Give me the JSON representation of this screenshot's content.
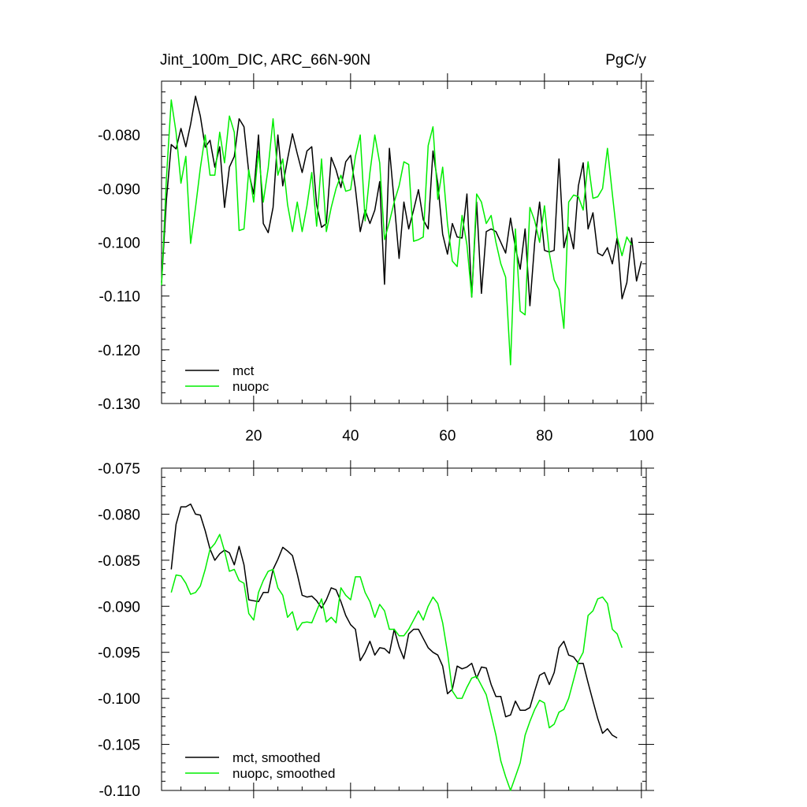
{
  "chart_data": [
    {
      "type": "line",
      "title": "Jint_100m_DIC, ARC_66N-90N",
      "units_label": "PgC/y",
      "xlim": [
        1,
        101
      ],
      "ylim": [
        -0.13,
        -0.07
      ],
      "x_ticks": [
        20,
        40,
        60,
        80,
        100
      ],
      "y_ticks": [
        -0.08,
        -0.09,
        -0.1,
        -0.11,
        -0.12,
        -0.13
      ],
      "y_tick_labels": [
        "-0.080",
        "-0.090",
        "-0.100",
        "-0.110",
        "-0.120",
        "-0.130"
      ],
      "legend_position": "bottom-left",
      "grid": false,
      "series": [
        {
          "name": "mct",
          "color": "#000000",
          "x_start": 1,
          "values": [
            -0.1075,
            -0.092,
            -0.0818,
            -0.0826,
            -0.0788,
            -0.0822,
            -0.078,
            -0.0728,
            -0.0765,
            -0.0823,
            -0.081,
            -0.086,
            -0.0822,
            -0.0935,
            -0.086,
            -0.084,
            -0.077,
            -0.0785,
            -0.087,
            -0.091,
            -0.08,
            -0.0965,
            -0.0982,
            -0.0935,
            -0.08,
            -0.0895,
            -0.0845,
            -0.0798,
            -0.0835,
            -0.087,
            -0.083,
            -0.0822,
            -0.093,
            -0.0972,
            -0.0965,
            -0.0842,
            -0.0865,
            -0.0898,
            -0.085,
            -0.0838,
            -0.09,
            -0.098,
            -0.094,
            -0.0965,
            -0.094,
            -0.0887,
            -0.1078,
            -0.0825,
            -0.0925,
            -0.103,
            -0.0925,
            -0.0975,
            -0.094,
            -0.0902,
            -0.0958,
            -0.0975,
            -0.083,
            -0.089,
            -0.0985,
            -0.1022,
            -0.0965,
            -0.099,
            -0.0992,
            -0.091,
            -0.1102,
            -0.0925,
            -0.1095,
            -0.098,
            -0.0975,
            -0.098,
            -0.1,
            -0.102,
            -0.0955,
            -0.101,
            -0.105,
            -0.0975,
            -0.1118,
            -0.1,
            -0.0925,
            -0.1015,
            -0.1018,
            -0.1015,
            -0.0845,
            -0.101,
            -0.0972,
            -0.1012,
            -0.0895,
            -0.0852,
            -0.0975,
            -0.0945,
            -0.102,
            -0.1025,
            -0.101,
            -0.104,
            -0.0992,
            -0.1105,
            -0.1075,
            -0.0992,
            -0.1072,
            -0.1035
          ]
        },
        {
          "name": "nuopc",
          "color": "#00ee00",
          "x_start": 1,
          "values": [
            -0.108,
            -0.088,
            -0.0735,
            -0.0795,
            -0.089,
            -0.084,
            -0.1002,
            -0.0935,
            -0.0862,
            -0.08,
            -0.0875,
            -0.0875,
            -0.0795,
            -0.0852,
            -0.0765,
            -0.0795,
            -0.0978,
            -0.0975,
            -0.0865,
            -0.0925,
            -0.083,
            -0.0925,
            -0.0862,
            -0.077,
            -0.0875,
            -0.0845,
            -0.093,
            -0.098,
            -0.0925,
            -0.098,
            -0.0932,
            -0.087,
            -0.097,
            -0.0845,
            -0.098,
            -0.0935,
            -0.09,
            -0.0875,
            -0.0905,
            -0.0902,
            -0.084,
            -0.08,
            -0.096,
            -0.087,
            -0.08,
            -0.0852,
            -0.0995,
            -0.0962,
            -0.0925,
            -0.0895,
            -0.085,
            -0.0855,
            -0.0998,
            -0.0995,
            -0.099,
            -0.082,
            -0.0785,
            -0.092,
            -0.086,
            -0.0965,
            -0.1035,
            -0.1045,
            -0.095,
            -0.1005,
            -0.1102,
            -0.091,
            -0.0925,
            -0.0965,
            -0.095,
            -0.1,
            -0.104,
            -0.1065,
            -0.1228,
            -0.0975,
            -0.1128,
            -0.1135,
            -0.0935,
            -0.096,
            -0.1,
            -0.0932,
            -0.102,
            -0.107,
            -0.1088,
            -0.116,
            -0.0925,
            -0.0912,
            -0.0915,
            -0.094,
            -0.085,
            -0.0918,
            -0.0915,
            -0.09,
            -0.0825,
            -0.091,
            -0.099,
            -0.1025,
            -0.099,
            -0.1005
          ]
        }
      ]
    },
    {
      "type": "line",
      "title": "",
      "xlim": [
        1,
        101
      ],
      "ylim": [
        -0.11,
        -0.075
      ],
      "y_ticks": [
        -0.075,
        -0.08,
        -0.085,
        -0.09,
        -0.095,
        -0.1,
        -0.105,
        -0.11
      ],
      "y_tick_labels": [
        "-0.075",
        "-0.080",
        "-0.085",
        "-0.090",
        "-0.095",
        "-0.100",
        "-0.105",
        "-0.110"
      ],
      "legend_position": "bottom-left",
      "grid": false,
      "series": [
        {
          "name": "mct, smoothed",
          "color": "#000000",
          "x_start": 3,
          "values": [
            -0.086,
            -0.0811,
            -0.0792,
            -0.0792,
            -0.0789,
            -0.08,
            -0.0801,
            -0.0818,
            -0.0838,
            -0.085,
            -0.0843,
            -0.0839,
            -0.0842,
            -0.0855,
            -0.0835,
            -0.0855,
            -0.0893,
            -0.0894,
            -0.0895,
            -0.0885,
            -0.0885,
            -0.086,
            -0.0849,
            -0.0836,
            -0.084,
            -0.0845,
            -0.0865,
            -0.0888,
            -0.089,
            -0.0889,
            -0.0894,
            -0.0902,
            -0.0893,
            -0.088,
            -0.0882,
            -0.0895,
            -0.091,
            -0.092,
            -0.0925,
            -0.0959,
            -0.095,
            -0.0938,
            -0.0953,
            -0.0945,
            -0.0946,
            -0.0951,
            -0.0925,
            -0.0944,
            -0.0957,
            -0.093,
            -0.0925,
            -0.0925,
            -0.0935,
            -0.0945,
            -0.095,
            -0.0953,
            -0.0965,
            -0.0995,
            -0.099,
            -0.0965,
            -0.0968,
            -0.0966,
            -0.0962,
            -0.0978,
            -0.0966,
            -0.0967,
            -0.0985,
            -0.0998,
            -0.0998,
            -0.102,
            -0.1018,
            -0.1003,
            -0.1013,
            -0.1013,
            -0.101,
            -0.0992,
            -0.0975,
            -0.0972,
            -0.0985,
            -0.0972,
            -0.0945,
            -0.0938,
            -0.0953,
            -0.0955,
            -0.0962,
            -0.0962,
            -0.0983,
            -0.1003,
            -0.1022,
            -0.1038,
            -0.1033,
            -0.104,
            -0.1043
          ]
        },
        {
          "name": "nuopc, smoothed",
          "color": "#00ee00",
          "x_start": 3,
          "values": [
            -0.0885,
            -0.0866,
            -0.0867,
            -0.0875,
            -0.0887,
            -0.0885,
            -0.0878,
            -0.086,
            -0.0838,
            -0.0832,
            -0.0822,
            -0.084,
            -0.0862,
            -0.086,
            -0.0872,
            -0.0875,
            -0.0908,
            -0.0915,
            -0.0885,
            -0.0872,
            -0.0862,
            -0.086,
            -0.088,
            -0.0888,
            -0.0912,
            -0.0906,
            -0.0926,
            -0.0918,
            -0.0917,
            -0.0918,
            -0.0905,
            -0.0892,
            -0.0917,
            -0.0912,
            -0.0918,
            -0.088,
            -0.0888,
            -0.0893,
            -0.0868,
            -0.0868,
            -0.0885,
            -0.0895,
            -0.0912,
            -0.0898,
            -0.0905,
            -0.0925,
            -0.0925,
            -0.0932,
            -0.0932,
            -0.0925,
            -0.0915,
            -0.0905,
            -0.0915,
            -0.09,
            -0.089,
            -0.0897,
            -0.0918,
            -0.095,
            -0.0992,
            -0.1,
            -0.1,
            -0.0988,
            -0.0978,
            -0.0976,
            -0.0986,
            -0.0996,
            -0.1018,
            -0.104,
            -0.1068,
            -0.1085,
            -0.11,
            -0.1085,
            -0.107,
            -0.104,
            -0.1025,
            -0.1012,
            -0.1002,
            -0.1005,
            -0.1032,
            -0.1028,
            -0.1015,
            -0.1012,
            -0.1,
            -0.098,
            -0.096,
            -0.095,
            -0.091,
            -0.0905,
            -0.0892,
            -0.089,
            -0.0897,
            -0.0925,
            -0.093,
            -0.0945
          ]
        }
      ]
    }
  ]
}
